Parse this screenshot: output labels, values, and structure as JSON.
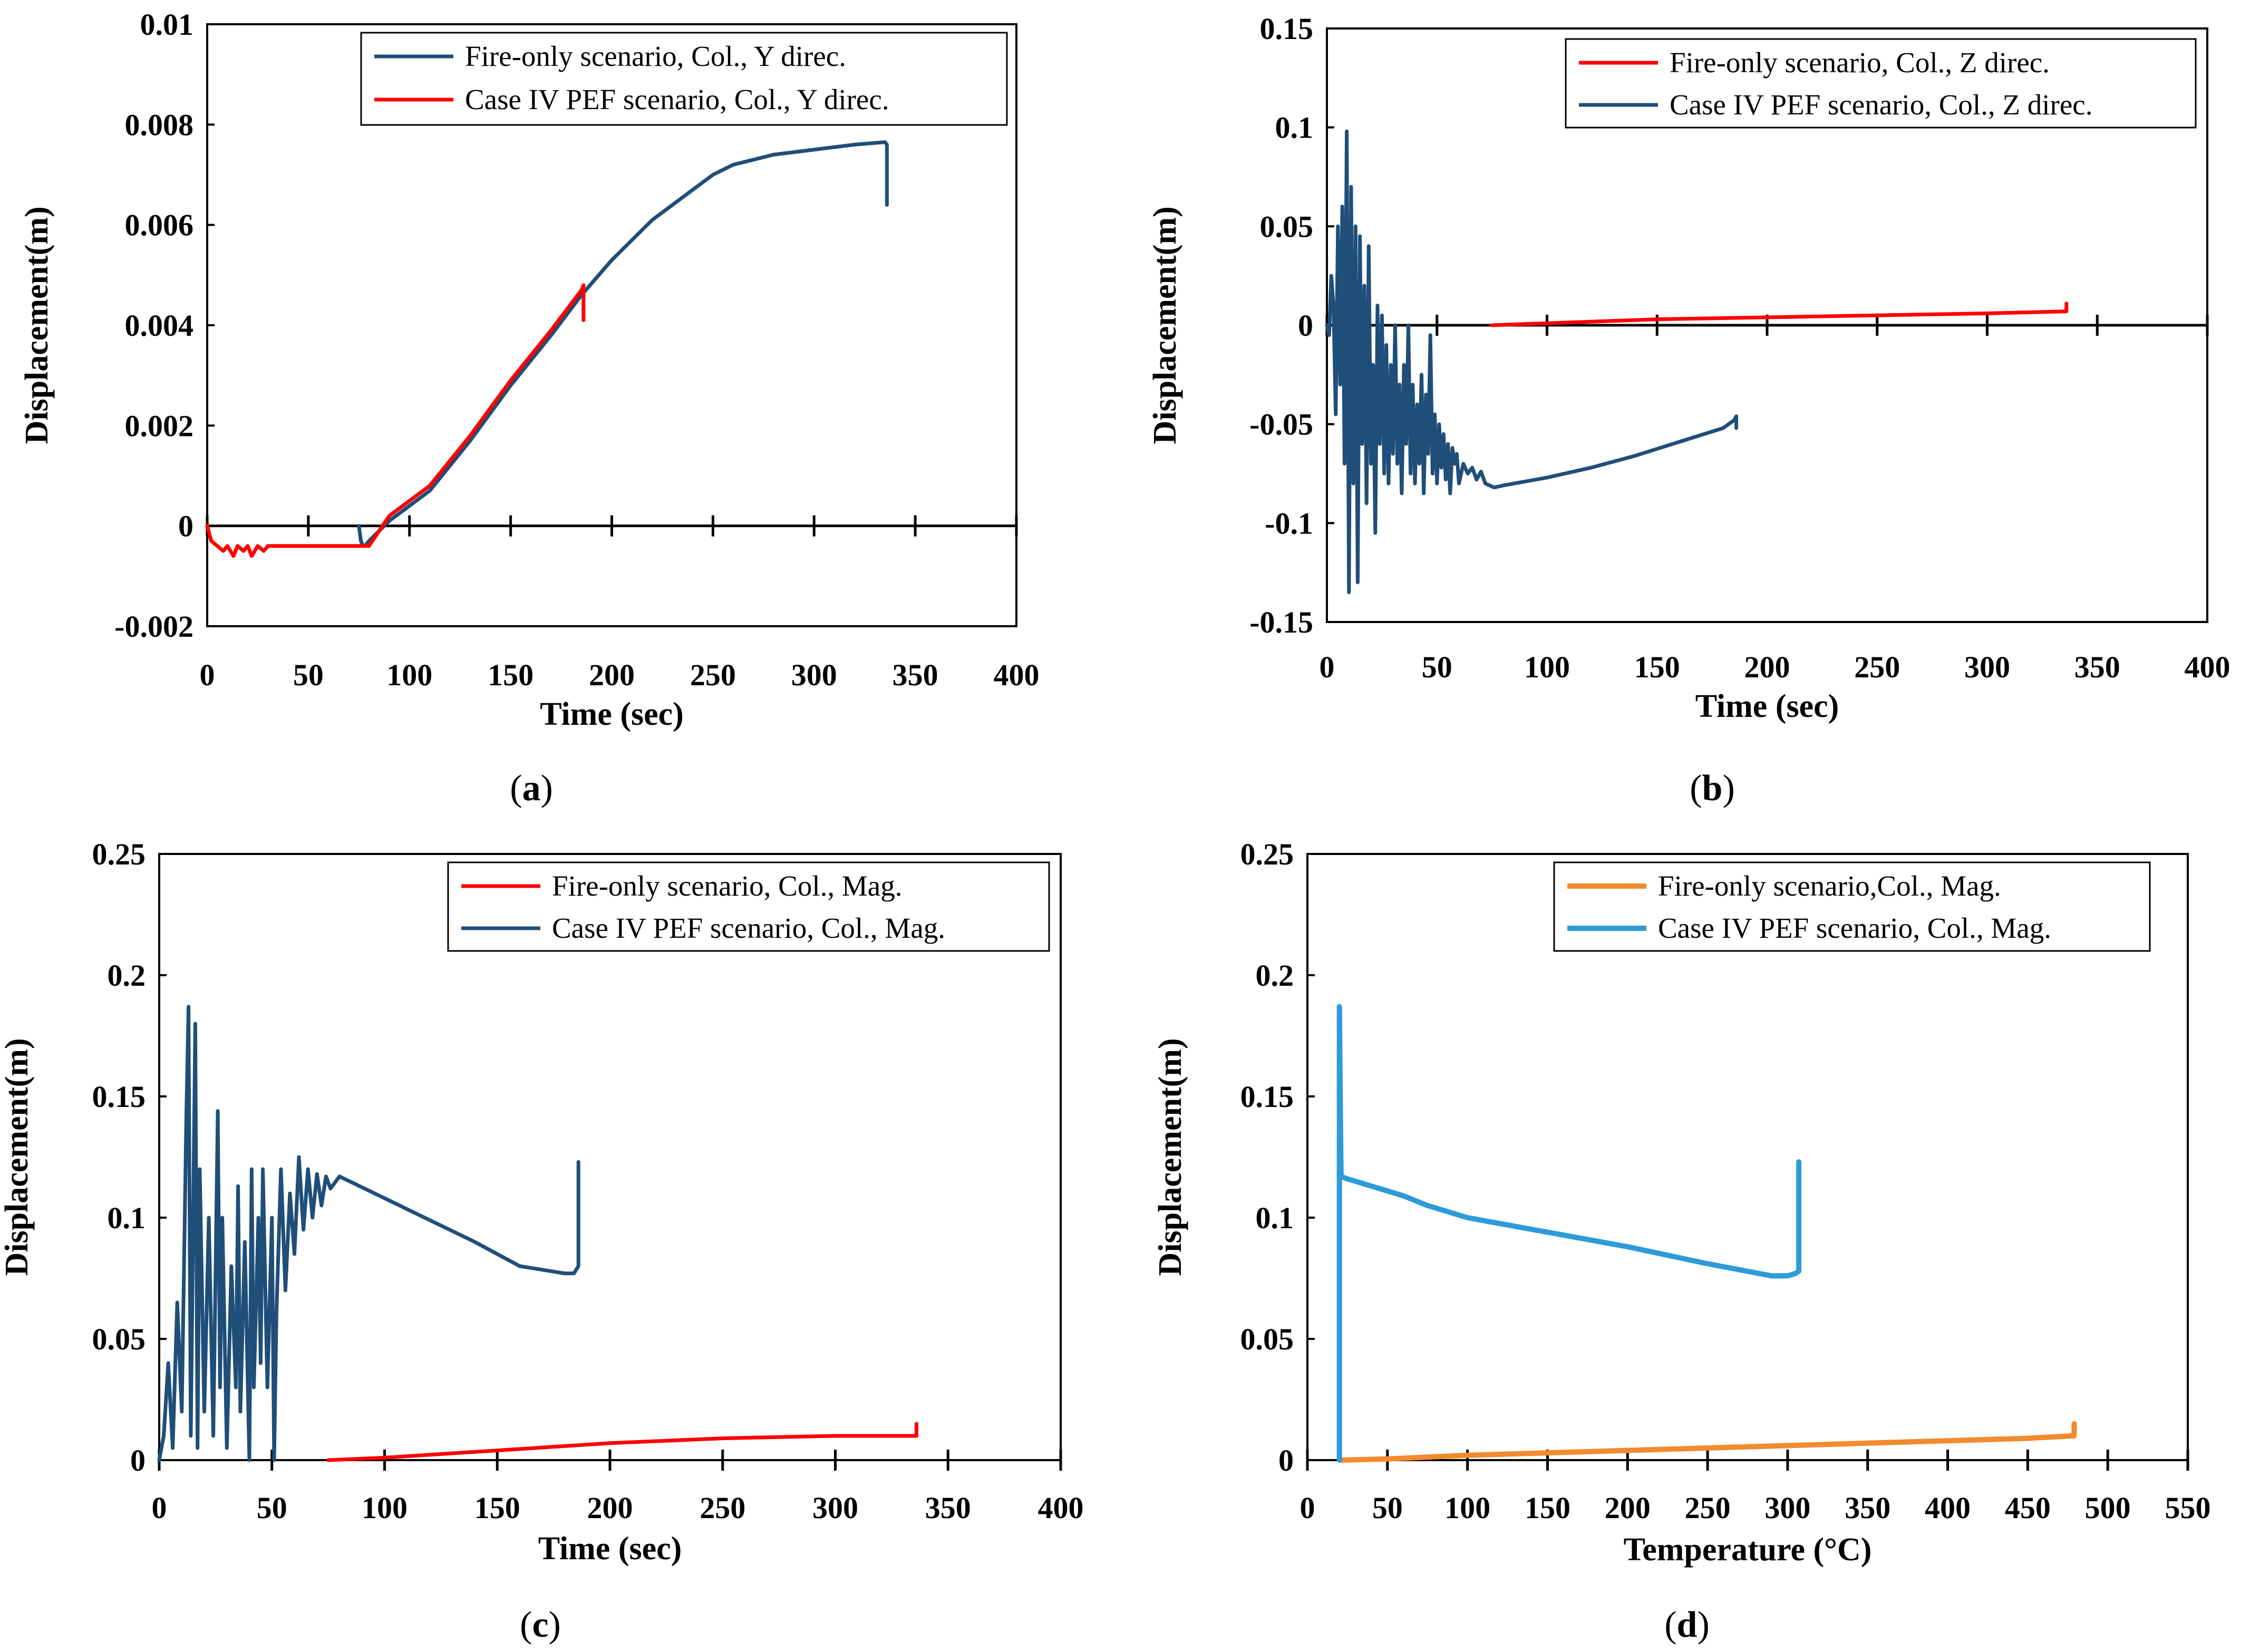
{
  "chart_data": [
    {
      "id": "a",
      "type": "line",
      "panel_label": "a",
      "xlabel": "Time (sec)",
      "ylabel": "Displacement(m)",
      "xlim": [
        0,
        400
      ],
      "ylim": [
        -0.002,
        0.01
      ],
      "xticks": [
        0,
        50,
        100,
        150,
        200,
        250,
        300,
        350,
        400
      ],
      "yticks": [
        -0.002,
        0,
        0.002,
        0.004,
        0.006,
        0.008,
        0.01
      ],
      "xtick_labels": [
        "0",
        "50",
        "100",
        "150",
        "200",
        "250",
        "300",
        "350",
        "400"
      ],
      "ytick_labels": [
        "-0.002",
        "0",
        "0.002",
        "0.004",
        "0.006",
        "0.008",
        "0.01"
      ],
      "legend_position": "top-right",
      "series": [
        {
          "name": "Fire-only scenario, Col., Y direc.",
          "color": "#1f4e79",
          "x": [
            75,
            76,
            77,
            78,
            80,
            90,
            100,
            110,
            120,
            130,
            150,
            170,
            185,
            200,
            220,
            240,
            250,
            260,
            280,
            300,
            320,
            335,
            336,
            336
          ],
          "y": [
            0,
            -0.0003,
            -0.0004,
            -0.0004,
            -0.0003,
            0.0001,
            0.0004,
            0.0007,
            0.0012,
            0.0017,
            0.0028,
            0.0038,
            0.0046,
            0.0053,
            0.0061,
            0.0067,
            0.007,
            0.0072,
            0.0074,
            0.0075,
            0.0076,
            0.00765,
            0.0076,
            0.0064
          ]
        },
        {
          "name": "Case IV PEF scenario, Col., Y direc.",
          "color": "#ff0000",
          "x": [
            0,
            2,
            5,
            8,
            10,
            13,
            15,
            18,
            20,
            22,
            25,
            28,
            30,
            35,
            40,
            50,
            60,
            70,
            75,
            80,
            90,
            100,
            110,
            120,
            130,
            150,
            170,
            185,
            186,
            186
          ],
          "y": [
            0,
            -0.0003,
            -0.0004,
            -0.0005,
            -0.0004,
            -0.0006,
            -0.0004,
            -0.0005,
            -0.0004,
            -0.0006,
            -0.0004,
            -0.0005,
            -0.0004,
            -0.0004,
            -0.0004,
            -0.0004,
            -0.0004,
            -0.0004,
            -0.0004,
            -0.0004,
            0.0002,
            0.0005,
            0.0008,
            0.0013,
            0.0018,
            0.0029,
            0.0039,
            0.0047,
            0.0048,
            0.0041
          ]
        }
      ]
    },
    {
      "id": "b",
      "type": "line",
      "panel_label": "b",
      "xlabel": "Time (sec)",
      "ylabel": "Displacement(m)",
      "xlim": [
        0,
        400
      ],
      "ylim": [
        -0.15,
        0.15
      ],
      "xticks": [
        0,
        50,
        100,
        150,
        200,
        250,
        300,
        350,
        400
      ],
      "yticks": [
        -0.15,
        -0.1,
        -0.05,
        0,
        0.05,
        0.1,
        0.15
      ],
      "xtick_labels": [
        "0",
        "50",
        "100",
        "150",
        "200",
        "250",
        "300",
        "350",
        "400"
      ],
      "ytick_labels": [
        "-0.15",
        "-0.1",
        "-0.05",
        "0",
        "0.05",
        "0.1",
        "0.15"
      ],
      "legend_position": "top-right",
      "series": [
        {
          "name": "Fire-only scenario, Col., Z direc.",
          "color": "#ff0000",
          "x": [
            75,
            100,
            150,
            200,
            250,
            300,
            335,
            336,
            336
          ],
          "y": [
            0,
            0.001,
            0.003,
            0.004,
            0.005,
            0.006,
            0.007,
            0.007,
            0.011
          ]
        },
        {
          "name": "Case IV PEF scenario, Col., Z direc.",
          "color": "#1f4e79",
          "x": [
            0,
            1,
            2,
            3,
            4,
            5,
            6,
            7,
            8,
            9,
            10,
            11,
            12,
            13,
            14,
            15,
            16,
            17,
            18,
            19,
            20,
            21,
            22,
            23,
            24,
            25,
            26,
            27,
            28,
            29,
            30,
            31,
            32,
            33,
            34,
            35,
            36,
            37,
            38,
            39,
            40,
            41,
            42,
            43,
            44,
            45,
            46,
            47,
            48,
            49,
            50,
            51,
            52,
            53,
            54,
            55,
            56,
            57,
            58,
            59,
            60,
            62,
            64,
            66,
            68,
            70,
            72,
            74,
            76,
            80,
            100,
            120,
            140,
            160,
            180,
            185,
            186,
            186
          ],
          "y": [
            0,
            -0.005,
            0.025,
            0.01,
            -0.045,
            0.05,
            -0.03,
            0.06,
            -0.07,
            0.098,
            -0.135,
            0.07,
            -0.08,
            0.05,
            -0.13,
            0.045,
            -0.06,
            0.02,
            -0.09,
            0.04,
            -0.07,
            -0.02,
            -0.105,
            0.01,
            -0.06,
            0.005,
            -0.075,
            -0.01,
            -0.08,
            -0.02,
            -0.065,
            0.0,
            -0.07,
            -0.03,
            -0.085,
            -0.02,
            -0.06,
            0.0,
            -0.075,
            -0.03,
            -0.08,
            -0.04,
            -0.07,
            -0.025,
            -0.085,
            -0.035,
            -0.065,
            -0.005,
            -0.075,
            -0.045,
            -0.08,
            -0.05,
            -0.072,
            -0.055,
            -0.078,
            -0.06,
            -0.085,
            -0.062,
            -0.07,
            -0.065,
            -0.08,
            -0.07,
            -0.075,
            -0.072,
            -0.078,
            -0.074,
            -0.08,
            -0.081,
            -0.082,
            -0.081,
            -0.077,
            -0.072,
            -0.066,
            -0.059,
            -0.052,
            -0.048,
            -0.046,
            -0.052
          ]
        }
      ]
    },
    {
      "id": "c",
      "type": "line",
      "panel_label": "c",
      "xlabel": "Time (sec)",
      "ylabel": "Displacement(m)",
      "xlim": [
        0,
        400
      ],
      "ylim": [
        0,
        0.25
      ],
      "xticks": [
        0,
        50,
        100,
        150,
        200,
        250,
        300,
        350,
        400
      ],
      "yticks": [
        0,
        0.05,
        0.1,
        0.15,
        0.2,
        0.25
      ],
      "xtick_labels": [
        "0",
        "50",
        "100",
        "150",
        "200",
        "250",
        "300",
        "350",
        "400"
      ],
      "ytick_labels": [
        "0",
        "0.05",
        "0.1",
        "0.15",
        "0.2",
        "0.25"
      ],
      "legend_position": "top-right",
      "series": [
        {
          "name": "Fire-only scenario, Col., Mag.",
          "color": "#ff0000",
          "x": [
            75,
            100,
            150,
            200,
            250,
            300,
            335,
            336,
            336
          ],
          "y": [
            0,
            0.001,
            0.004,
            0.007,
            0.009,
            0.01,
            0.01,
            0.01,
            0.015
          ]
        },
        {
          "name": "Case IV PEF scenario, Col., Mag.",
          "color": "#1f4e79",
          "x": [
            0,
            2,
            4,
            6,
            8,
            10,
            12,
            13,
            14,
            16,
            17,
            18,
            20,
            22,
            24,
            26,
            27,
            28,
            30,
            32,
            34,
            35,
            36,
            38,
            40,
            41,
            42,
            44,
            45,
            46,
            48,
            50,
            51,
            52,
            53,
            54,
            56,
            58,
            60,
            62,
            64,
            66,
            68,
            70,
            72,
            74,
            76,
            80,
            100,
            120,
            140,
            160,
            180,
            184,
            186,
            186
          ],
          "y": [
            0,
            0.01,
            0.04,
            0.005,
            0.065,
            0.02,
            0.14,
            0.187,
            0.01,
            0.18,
            0.005,
            0.12,
            0.02,
            0.1,
            0.01,
            0.144,
            0.03,
            0.1,
            0.005,
            0.08,
            0.03,
            0.113,
            0.02,
            0.09,
            0.0,
            0.12,
            0.03,
            0.1,
            0.04,
            0.12,
            0.03,
            0.1,
            0.0,
            0.06,
            0.09,
            0.12,
            0.07,
            0.11,
            0.085,
            0.125,
            0.095,
            0.12,
            0.1,
            0.118,
            0.105,
            0.117,
            0.112,
            0.117,
            0.108,
            0.099,
            0.09,
            0.08,
            0.077,
            0.077,
            0.08,
            0.123
          ]
        }
      ]
    },
    {
      "id": "d",
      "type": "line",
      "panel_label": "d",
      "xlabel": "Temperature (°C)",
      "ylabel": "Displacement(m)",
      "xlim": [
        0,
        550
      ],
      "ylim": [
        0,
        0.25
      ],
      "xticks": [
        0,
        50,
        100,
        150,
        200,
        250,
        300,
        350,
        400,
        450,
        500,
        550
      ],
      "yticks": [
        0,
        0.05,
        0.1,
        0.15,
        0.2,
        0.25
      ],
      "xtick_labels": [
        "0",
        "50",
        "100",
        "150",
        "200",
        "250",
        "300",
        "350",
        "400",
        "450",
        "500",
        "550"
      ],
      "ytick_labels": [
        "0",
        "0.05",
        "0.1",
        "0.15",
        "0.2",
        "0.25"
      ],
      "legend_position": "top-right",
      "series": [
        {
          "name": "Fire-only scenario,Col., Mag.",
          "color": "#f28a2e",
          "x": [
            20,
            50,
            100,
            150,
            200,
            250,
            300,
            350,
            400,
            450,
            478,
            479,
            479
          ],
          "y": [
            0,
            0.0005,
            0.002,
            0.003,
            0.004,
            0.005,
            0.006,
            0.007,
            0.008,
            0.009,
            0.01,
            0.01,
            0.015
          ]
        },
        {
          "name": "Case IV PEF scenario, Col., Mag.",
          "color": "#2e9bd8",
          "x": [
            20,
            20,
            20.5,
            21,
            25,
            40,
            60,
            75,
            100,
            150,
            200,
            250,
            290,
            300,
            305,
            307,
            307
          ],
          "y": [
            0,
            0.187,
            0.15,
            0.117,
            0.116,
            0.113,
            0.109,
            0.105,
            0.1,
            0.094,
            0.088,
            0.081,
            0.076,
            0.076,
            0.077,
            0.078,
            0.123
          ]
        }
      ]
    }
  ]
}
